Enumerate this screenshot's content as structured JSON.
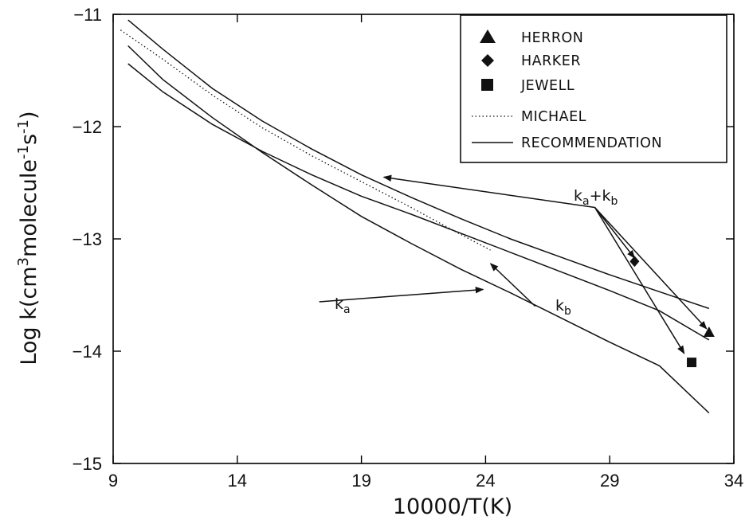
{
  "chart_data": {
    "type": "line",
    "xlabel": "10000/T(K)",
    "ylabel_parts": {
      "prefix": "Log  k(cm",
      "sup1": "3",
      "mid": "molecule",
      "sup2": "-1",
      "mid2": "s",
      "sup3": "-1",
      "suffix": ")"
    },
    "xlim": [
      9,
      34
    ],
    "ylim": [
      -15,
      -11
    ],
    "xticks": [
      9,
      14,
      19,
      24,
      29,
      34
    ],
    "yticks": [
      -15,
      -14,
      -13,
      -12,
      -11
    ],
    "xtick_labels": [
      "9",
      "14",
      "19",
      "24",
      "29",
      "34"
    ],
    "ytick_labels": [
      "-15",
      "-14",
      "-13",
      "-12",
      "-11"
    ],
    "grid": false,
    "legend": {
      "placement": "top-right",
      "entries": [
        {
          "label": "HERRON",
          "marker": "triangle"
        },
        {
          "label": "HARKER",
          "marker": "diamond"
        },
        {
          "label": "JEWELL",
          "marker": "square"
        },
        {
          "label": "MICHAEL",
          "marker": "dotted-line"
        },
        {
          "label": "RECOMMENDATION",
          "marker": "solid-line"
        }
      ]
    },
    "series": [
      {
        "style": "solid",
        "x": [
          9.6,
          11,
          13,
          15,
          17,
          19,
          21,
          23,
          25,
          27,
          29,
          31,
          33
        ],
        "y": [
          -11.05,
          -11.31,
          -11.66,
          -11.95,
          -12.2,
          -12.43,
          -12.63,
          -12.82,
          -13.0,
          -13.16,
          -13.32,
          -13.47,
          -13.62
        ]
      },
      {
        "style": "solid",
        "x": [
          9.6,
          11,
          13,
          15,
          17,
          19,
          21,
          23,
          25,
          27,
          29,
          31,
          33
        ],
        "y": [
          -11.44,
          -11.69,
          -11.98,
          -12.22,
          -12.43,
          -12.62,
          -12.78,
          -12.95,
          -13.12,
          -13.29,
          -13.46,
          -13.64,
          -13.9
        ]
      },
      {
        "style": "solid",
        "x": [
          9.6,
          11,
          13,
          15,
          17,
          19,
          21,
          23,
          25,
          27,
          29,
          31,
          33
        ],
        "y": [
          -11.28,
          -11.58,
          -11.92,
          -12.23,
          -12.52,
          -12.8,
          -13.04,
          -13.27,
          -13.48,
          -13.7,
          -13.92,
          -14.13,
          -14.55
        ]
      },
      {
        "style": "dotted",
        "x": [
          9.3,
          11,
          13,
          15,
          17,
          19,
          21,
          23,
          24.2
        ],
        "y": [
          -11.14,
          -11.4,
          -11.72,
          -12.01,
          -12.26,
          -12.49,
          -12.72,
          -12.96,
          -13.1
        ]
      }
    ],
    "points": [
      {
        "name": "HERRON",
        "marker": "triangle",
        "x": 33.0,
        "y": -13.83
      },
      {
        "name": "HARKER",
        "marker": "diamond",
        "x": 30.0,
        "y": -13.2
      },
      {
        "name": "JEWELL",
        "marker": "square",
        "x": 32.3,
        "y": -14.1
      }
    ],
    "annotations": [
      {
        "text_main": "k",
        "text_sub": "a",
        "position": "lower-middle"
      },
      {
        "text_main": "k",
        "text_sub": "b",
        "position": "middle-right"
      },
      {
        "text_main": "k",
        "text_sub": "a",
        "text_join": "+k",
        "text_sub2": "b",
        "position": "right"
      }
    ],
    "arrows": [
      {
        "from": [
          28.4,
          -12.72
        ],
        "to": [
          19.9,
          -12.45
        ]
      },
      {
        "from": [
          28.4,
          -12.72
        ],
        "to": [
          32.9,
          -13.8
        ]
      },
      {
        "from": [
          28.4,
          -12.72
        ],
        "to": [
          30.0,
          -13.17
        ]
      },
      {
        "from": [
          28.4,
          -12.72
        ],
        "to": [
          32.0,
          -14.02
        ]
      },
      {
        "from": [
          17.3,
          -13.56
        ],
        "to": [
          23.9,
          -13.45
        ]
      },
      {
        "from": [
          26.0,
          -13.6
        ],
        "to": [
          24.2,
          -13.22
        ]
      }
    ]
  }
}
